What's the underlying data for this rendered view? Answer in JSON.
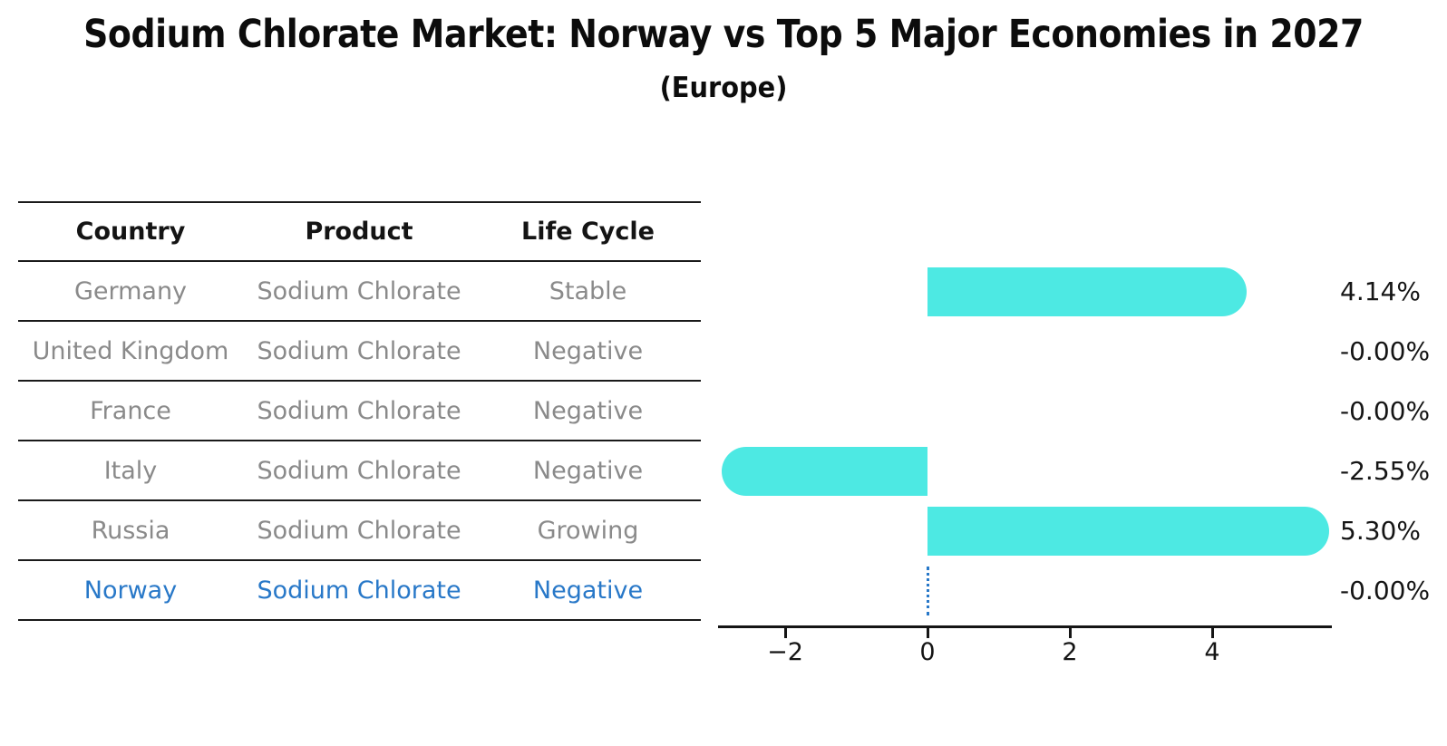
{
  "title": "Sodium Chlorate Market: Norway vs Top 5 Major Economies in 2027",
  "subtitle": "(Europe)",
  "table": {
    "headers": [
      "Country",
      "Product",
      "Life Cycle"
    ],
    "rows": [
      {
        "country": "Germany",
        "product": "Sodium Chlorate",
        "life_cycle": "Stable",
        "highlight": false
      },
      {
        "country": "United Kingdom",
        "product": "Sodium Chlorate",
        "life_cycle": "Negative",
        "highlight": false
      },
      {
        "country": "France",
        "product": "Sodium Chlorate",
        "life_cycle": "Negative",
        "highlight": false
      },
      {
        "country": "Italy",
        "product": "Sodium Chlorate",
        "life_cycle": "Negative",
        "highlight": false
      },
      {
        "country": "Russia",
        "product": "Sodium Chlorate",
        "life_cycle": "Growing",
        "highlight": false
      },
      {
        "country": "Norway",
        "product": "Sodium Chlorate",
        "life_cycle": "Negative",
        "highlight": true
      }
    ]
  },
  "chart_data": {
    "type": "bar",
    "orientation": "horizontal",
    "categories": [
      "Germany",
      "United Kingdom",
      "France",
      "Italy",
      "Russia",
      "Norway"
    ],
    "values": [
      4.14,
      -0.0,
      -0.0,
      -2.55,
      5.3,
      -0.0
    ],
    "value_labels": [
      "4.14%",
      "-0.00%",
      "-0.00%",
      "-2.55%",
      "5.30%",
      "-0.00%"
    ],
    "x_ticks": [
      -2,
      0,
      2,
      4
    ],
    "x_tick_labels": [
      "−2",
      "0",
      "2",
      "4"
    ],
    "xlim": [
      -2.95,
      5.7
    ],
    "grid": false,
    "legend": false,
    "bar_color": "#4DE9E3",
    "highlight_color": "#2878C8",
    "zero_marker_category": "Norway",
    "bar_cap_style": "round"
  },
  "colors": {
    "title_text": "#0c0c0c",
    "table_header_text": "#141414",
    "table_row_text": "#8a8a8a",
    "highlight_text": "#2878C8",
    "axis": "#151515",
    "bar": "#4DE9E3"
  }
}
